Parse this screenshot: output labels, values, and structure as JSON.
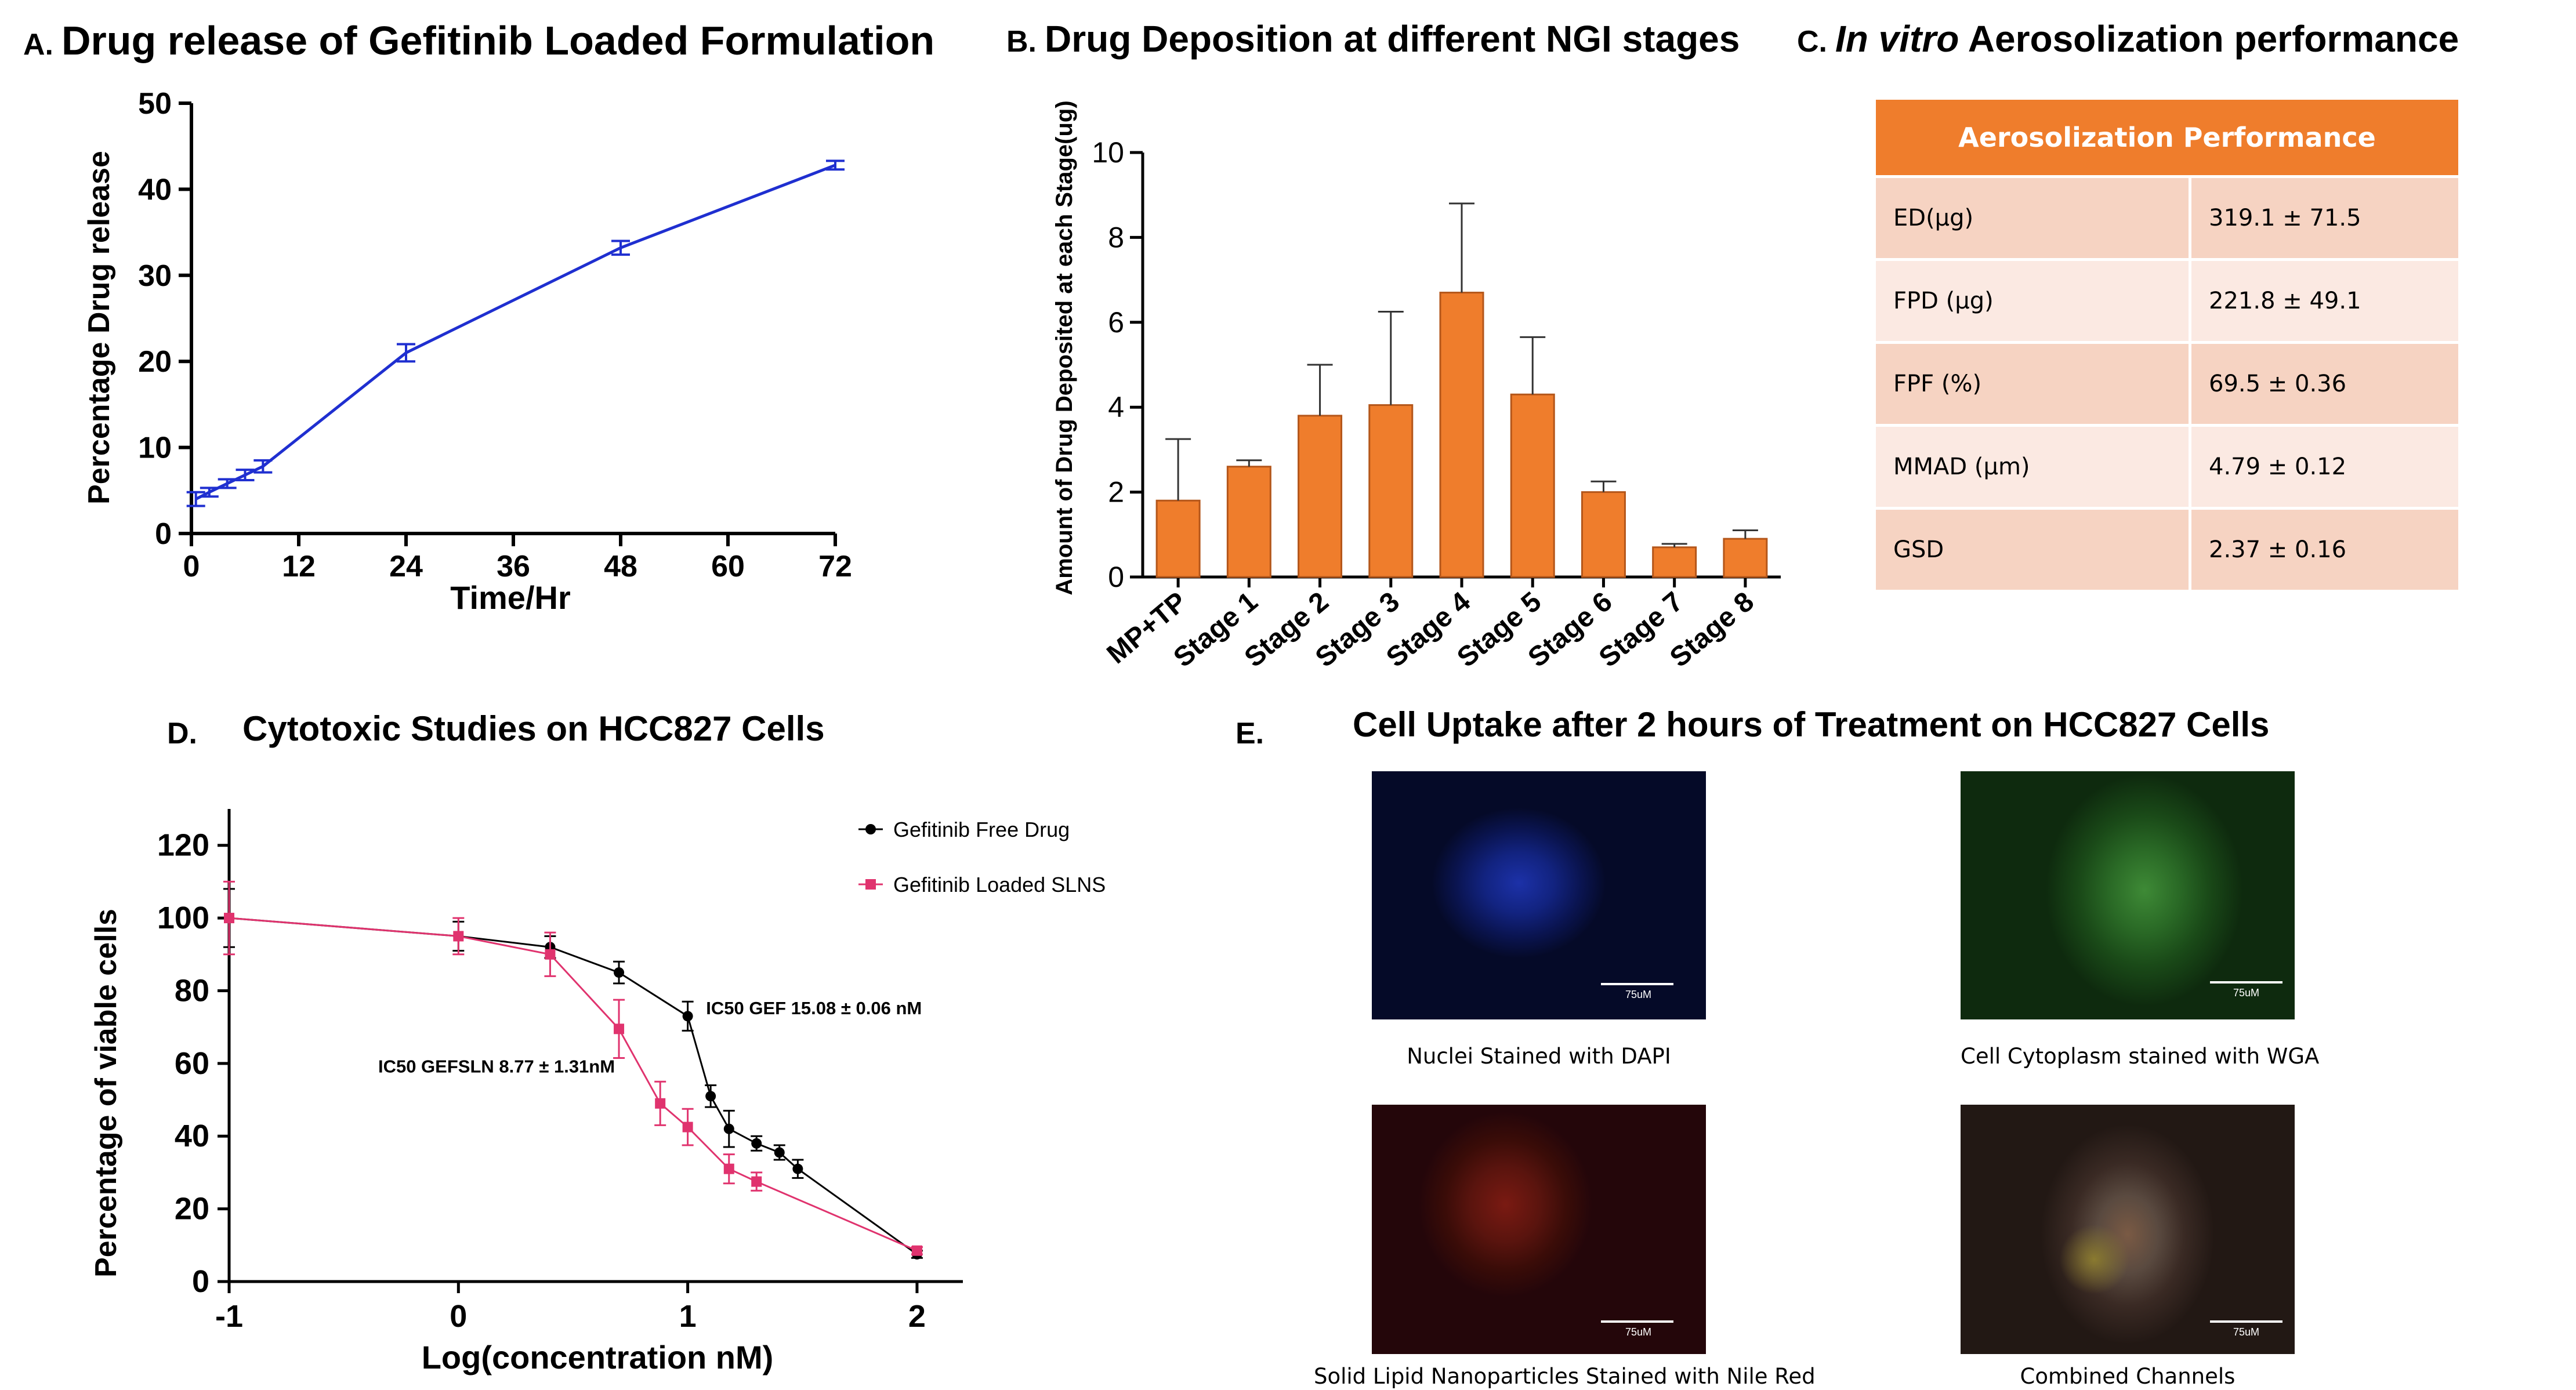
{
  "panels": {
    "a": {
      "letter": "A.",
      "title": "Drug release of Gefitinib Loaded Formulation"
    },
    "b": {
      "letter": "B.",
      "title": "Drug Deposition at different NGI stages"
    },
    "c": {
      "letter": "C.",
      "title_italic": "In vitro",
      "title_rest": " Aerosolization performance"
    },
    "d": {
      "letter": "D.",
      "title": "Cytotoxic Studies on HCC827 Cells"
    },
    "e": {
      "letter": "E.",
      "title": "Cell Uptake after 2 hours of Treatment on HCC827 Cells"
    }
  },
  "chart_data": [
    {
      "id": "A",
      "type": "line",
      "title": "Drug release of Gefitinib Loaded Formulation",
      "xlabel": "Time/Hr",
      "ylabel": "Percentage Drug release",
      "xlim": [
        0,
        72
      ],
      "ylim": [
        0,
        50
      ],
      "xticks": [
        0,
        12,
        24,
        36,
        48,
        60,
        72
      ],
      "yticks": [
        0,
        10,
        20,
        30,
        40,
        50
      ],
      "color": "#1f2fd0",
      "series": [
        {
          "x": [
            0.5,
            2,
            4,
            6,
            8,
            24,
            48,
            72
          ],
          "y": [
            4.0,
            4.8,
            5.8,
            6.8,
            7.8,
            21.0,
            33.2,
            42.8
          ],
          "err": [
            0.8,
            0.5,
            0.5,
            0.6,
            0.7,
            1.0,
            0.8,
            0.5
          ]
        }
      ]
    },
    {
      "id": "B",
      "type": "bar",
      "title": "Drug Deposition at different NGI stages",
      "xlabel": "",
      "ylabel": "Amount of Drug Deposited at each Stage(ug)",
      "ylim": [
        0,
        10
      ],
      "yticks": [
        0,
        2,
        4,
        6,
        8,
        10
      ],
      "color": "#ef7d2c",
      "categories": [
        "MP+TP",
        "Stage 1",
        "Stage 2",
        "Stage 3",
        "Stage 4",
        "Stage 5",
        "Stage 6",
        "Stage 7",
        "Stage 8"
      ],
      "values": [
        1.8,
        2.6,
        3.8,
        4.05,
        6.7,
        4.3,
        2.0,
        0.7,
        0.9
      ],
      "errors": [
        1.45,
        0.15,
        1.2,
        2.2,
        2.1,
        1.35,
        0.25,
        0.08,
        0.2
      ]
    },
    {
      "id": "C",
      "type": "table",
      "header": "Aerosolization Performance",
      "rows": [
        [
          "ED(μg)",
          "319.1 ±  71.5"
        ],
        [
          "FPD (μg)",
          "221.8 ± 49.1"
        ],
        [
          "FPF (%)",
          "69.5 ± 0.36"
        ],
        [
          "MMAD (μm)",
          "4.79 ± 0.12"
        ],
        [
          "GSD",
          "2.37 ± 0.16"
        ]
      ]
    },
    {
      "id": "D",
      "type": "line",
      "title": "Cytotoxic Studies on HCC827 Cells",
      "xlabel": "Log(concentration nM)",
      "ylabel": "Percentage of viable cells",
      "xlim": [
        -1,
        2.2
      ],
      "ylim": [
        0,
        130
      ],
      "xticks": [
        -1,
        0,
        1,
        2
      ],
      "yticks": [
        0,
        20,
        40,
        60,
        80,
        100,
        120
      ],
      "legend_position": "top-right",
      "series": [
        {
          "name": "Gefitinib Free Drug",
          "color": "#000000",
          "marker": "circle",
          "x": [
            -1,
            0,
            0.4,
            0.7,
            1.0,
            1.1,
            1.18,
            1.3,
            1.4,
            1.48,
            2.0
          ],
          "y": [
            100,
            95,
            92,
            85,
            73,
            51,
            42,
            38,
            35.5,
            31,
            7.5
          ],
          "err": [
            8,
            4,
            3,
            3,
            4,
            3,
            5,
            2,
            2,
            2.5,
            1
          ]
        },
        {
          "name": "Gefitinib Loaded SLNS",
          "color": "#e0336e",
          "marker": "square",
          "x": [
            -1,
            0,
            0.4,
            0.7,
            0.88,
            1.0,
            1.18,
            1.3,
            2.0
          ],
          "y": [
            100,
            95,
            90,
            69.5,
            49,
            42.5,
            31,
            27.5,
            8.5
          ],
          "err": [
            10,
            5,
            6,
            8,
            6,
            5,
            4,
            2.5,
            1
          ]
        }
      ],
      "annotations": [
        {
          "text": "IC50 GEF 15.08 ± 0.06 nM",
          "x": 1.08,
          "y": 73.5
        },
        {
          "text": "IC50 GEFSLN 8.77 ± 1.31nM",
          "x": -0.35,
          "y": 57.5
        }
      ]
    }
  ],
  "images": [
    {
      "caption": "Nuclei Stained with DAPI",
      "scale": "75uM",
      "stain": "blue"
    },
    {
      "caption": "Cell Cytoplasm stained with WGA",
      "scale": "75uM",
      "stain": "green"
    },
    {
      "caption": "Solid Lipid Nanoparticles Stained with Nile Red",
      "scale": "75uM",
      "stain": "red"
    },
    {
      "caption": "Combined Channels",
      "scale": "75uM",
      "stain": "merged"
    }
  ]
}
